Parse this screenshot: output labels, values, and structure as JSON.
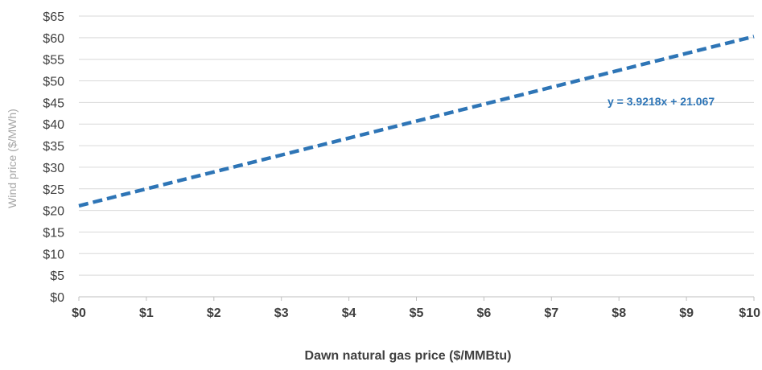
{
  "chart_data": {
    "type": "line",
    "xlabel": "Dawn natural gas price ($/MMBtu)",
    "ylabel": "Wind price ($/MWh)",
    "x_ticks": [
      "$0",
      "$1",
      "$2",
      "$3",
      "$4",
      "$5",
      "$6",
      "$7",
      "$8",
      "$9",
      "$10"
    ],
    "y_ticks": [
      "$0",
      "$5",
      "$10",
      "$15",
      "$20",
      "$25",
      "$30",
      "$35",
      "$40",
      "$45",
      "$50",
      "$55",
      "$60",
      "$65"
    ],
    "xlim": [
      0,
      10
    ],
    "ylim": [
      0,
      65
    ],
    "grid": true,
    "series": [
      {
        "style": "dashed",
        "color": "#2e75b6",
        "x": [
          0,
          10
        ],
        "values": [
          21.067,
          60.285
        ]
      }
    ],
    "annotations": [
      {
        "text": "y = 3.9218x + 21.067",
        "color": "#2e75b6"
      }
    ]
  }
}
